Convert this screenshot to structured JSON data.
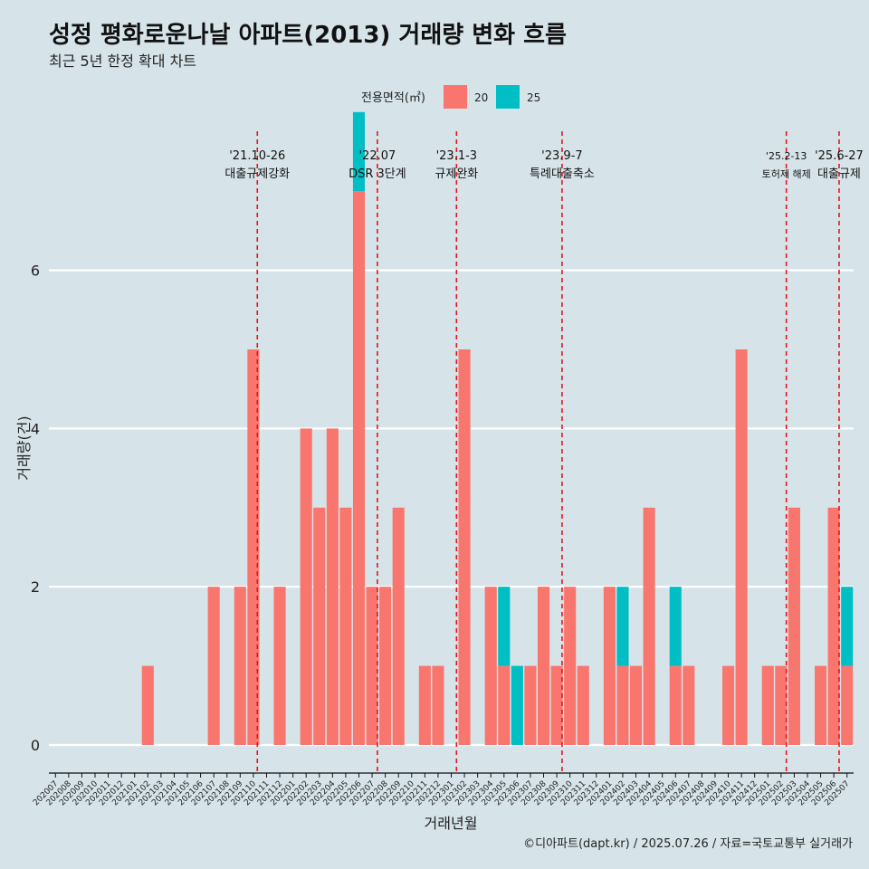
{
  "title": "성정 평화로운나날 아파트(2013) 거래량 변화 흐름",
  "subtitle": "최근 5년 한정 확대 차트",
  "caption": "©디아파트(dapt.kr) / 2025.07.26 / 자료=국토교통부 실거래가",
  "chart_data": {
    "type": "bar",
    "stacked": true,
    "xlabel": "거래년월",
    "ylabel": "거래량(건)",
    "ylim": [
      0,
      7.5
    ],
    "yticks": [
      0,
      2,
      4,
      6
    ],
    "legend": {
      "title": "전용면적(㎡)",
      "position": "top"
    },
    "categories": [
      "202007",
      "202008",
      "202009",
      "202010",
      "202011",
      "202012",
      "202101",
      "202102",
      "202103",
      "202104",
      "202105",
      "202106",
      "202107",
      "202108",
      "202109",
      "202110",
      "202111",
      "202112",
      "202201",
      "202202",
      "202203",
      "202204",
      "202205",
      "202206",
      "202207",
      "202208",
      "202209",
      "202210",
      "202211",
      "202212",
      "202301",
      "202302",
      "202303",
      "202304",
      "202305",
      "202306",
      "202307",
      "202308",
      "202309",
      "202310",
      "202311",
      "202312",
      "202401",
      "202402",
      "202403",
      "202404",
      "202405",
      "202406",
      "202407",
      "202408",
      "202409",
      "202410",
      "202411",
      "202412",
      "202501",
      "202502",
      "202503",
      "202504",
      "202505",
      "202506",
      "202507"
    ],
    "series": [
      {
        "name": "20",
        "color": "#f8766d",
        "values": [
          0,
          0,
          0,
          0,
          0,
          0,
          0,
          1,
          0,
          0,
          0,
          0,
          2,
          0,
          2,
          5,
          0,
          2,
          0,
          4,
          3,
          4,
          3,
          7,
          2,
          2,
          3,
          0,
          1,
          1,
          0,
          5,
          0,
          2,
          1,
          0,
          1,
          2,
          1,
          2,
          1,
          0,
          2,
          1,
          1,
          3,
          0,
          1,
          1,
          0,
          0,
          1,
          5,
          0,
          1,
          1,
          3,
          0,
          1,
          3,
          1
        ]
      },
      {
        "name": "25",
        "color": "#00bfc4",
        "values": [
          0,
          0,
          0,
          0,
          0,
          0,
          0,
          0,
          0,
          0,
          0,
          0,
          0,
          0,
          0,
          0,
          0,
          0,
          0,
          0,
          0,
          0,
          0,
          1,
          0,
          0,
          0,
          0,
          0,
          0,
          0,
          0,
          0,
          0,
          1,
          1,
          0,
          0,
          0,
          0,
          0,
          0,
          0,
          1,
          0,
          0,
          0,
          1,
          0,
          0,
          0,
          0,
          0,
          0,
          0,
          0,
          0,
          0,
          0,
          0,
          1
        ]
      }
    ],
    "annotations": [
      {
        "x": 15.3,
        "date": "'21.10-26",
        "label": "대출규제강화"
      },
      {
        "x": 24.4,
        "date": "'22.07",
        "label": "DSR 3단계"
      },
      {
        "x": 30.4,
        "date": "'23.1-3",
        "label": "규제완화"
      },
      {
        "x": 38.4,
        "date": "'23.9-7",
        "label": "특례대출축소"
      },
      {
        "x": 55.4,
        "date": "'25.2-13",
        "label": "토허제 해제"
      },
      {
        "x": 59.4,
        "date": "'25.6-27",
        "label": "대출규제"
      }
    ]
  }
}
